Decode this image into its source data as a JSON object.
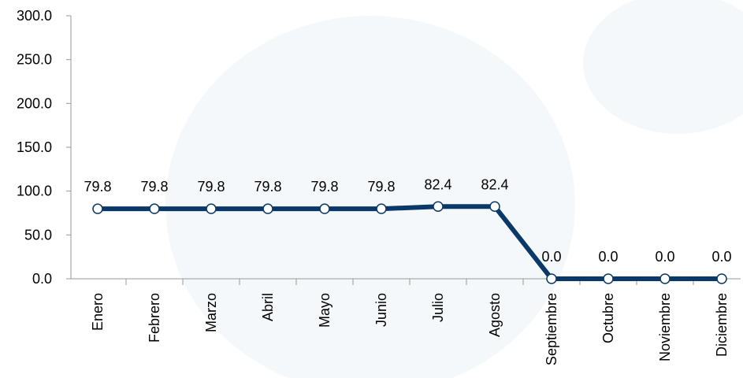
{
  "chart_data": {
    "type": "line",
    "categories": [
      "Enero",
      "Febrero",
      "Marzo",
      "Abril",
      "Mayo",
      "Junio",
      "Julio",
      "Agosto",
      "Septiembre",
      "Octubre",
      "Noviembre",
      "Diciembre"
    ],
    "series": [
      {
        "color": "#0a3868",
        "values": [
          79.8,
          79.8,
          79.8,
          79.8,
          79.8,
          79.8,
          82.4,
          82.4,
          0,
          0,
          0,
          0
        ],
        "value_labels": [
          "79.8",
          "79.8",
          "79.8",
          "79.8",
          "79.8",
          "79.8",
          "82.4",
          "82.4",
          "0.0",
          "0.0",
          "0.0",
          "0.0"
        ]
      }
    ],
    "ylim": [
      0,
      300
    ],
    "yticks": [
      {
        "value": 0,
        "label": "0.0"
      },
      {
        "value": 50,
        "label": "50.0"
      },
      {
        "value": 100,
        "label": "100.0"
      },
      {
        "value": 150,
        "label": "150.0"
      },
      {
        "value": 200,
        "label": "200.0"
      },
      {
        "value": 250,
        "label": "250.0"
      },
      {
        "value": 300,
        "label": "300.0"
      }
    ]
  }
}
